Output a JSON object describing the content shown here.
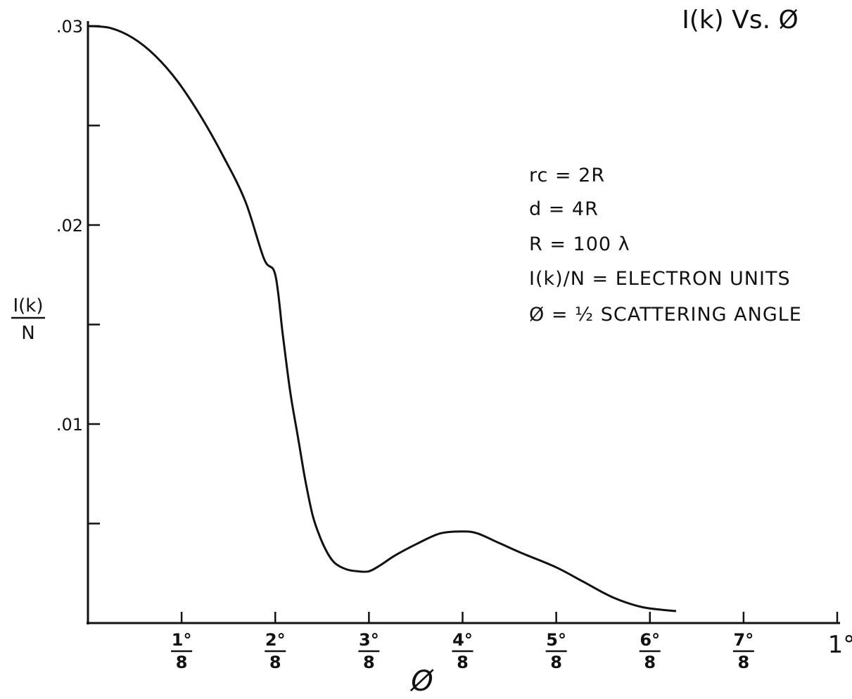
{
  "chart_data": {
    "type": "line",
    "title": "I(k) Vs. Ø",
    "xlabel": "Ø",
    "ylabel": {
      "numerator": "I(k)",
      "denominator": "N"
    },
    "xlim": [
      0,
      1
    ],
    "ylim": [
      0,
      0.03
    ],
    "y_ticks": [
      {
        "value": 0.005,
        "label": ""
      },
      {
        "value": 0.01,
        "label": ".01"
      },
      {
        "value": 0.015,
        "label": ""
      },
      {
        "value": 0.02,
        "label": ".02"
      },
      {
        "value": 0.025,
        "label": ""
      },
      {
        "value": 0.03,
        "label": ".03"
      }
    ],
    "x_ticks": [
      {
        "value": 0.125,
        "numerator": "1°",
        "denominator": "8"
      },
      {
        "value": 0.25,
        "numerator": "2°",
        "denominator": "8"
      },
      {
        "value": 0.375,
        "numerator": "3°",
        "denominator": "8"
      },
      {
        "value": 0.5,
        "numerator": "4°",
        "denominator": "8"
      },
      {
        "value": 0.625,
        "numerator": "5°",
        "denominator": "8"
      },
      {
        "value": 0.75,
        "numerator": "6°",
        "denominator": "8"
      },
      {
        "value": 0.875,
        "numerator": "7°",
        "denominator": "8"
      },
      {
        "value": 1.0,
        "label": "1°"
      }
    ],
    "series": [
      {
        "x": [
          0.0,
          0.03,
          0.06,
          0.09,
          0.12,
          0.15,
          0.18,
          0.21,
          0.235,
          0.25,
          0.26,
          0.27,
          0.28,
          0.29,
          0.3,
          0.31,
          0.32,
          0.33,
          0.345,
          0.36,
          0.375,
          0.39,
          0.41,
          0.44,
          0.47,
          0.5,
          0.52,
          0.55,
          0.58,
          0.625,
          0.66,
          0.7,
          0.74,
          0.785
        ],
        "y": [
          0.03,
          0.0299,
          0.0294,
          0.0285,
          0.0272,
          0.0255,
          0.0235,
          0.0212,
          0.0183,
          0.0175,
          0.0145,
          0.0116,
          0.0094,
          0.0072,
          0.0054,
          0.0043,
          0.0035,
          0.003,
          0.0027,
          0.0026,
          0.0026,
          0.0029,
          0.0034,
          0.004,
          0.0045,
          0.0046,
          0.0045,
          0.004,
          0.0035,
          0.0028,
          0.0021,
          0.0013,
          0.0008,
          0.0006
        ]
      }
    ],
    "annotations": [
      "rc = 2R",
      "d = 4R",
      "R = 100 λ",
      "I(k)/N = ELECTRON UNITS",
      "Ø = ½ SCATTERING ANGLE"
    ],
    "grid": false,
    "legend": "none"
  }
}
